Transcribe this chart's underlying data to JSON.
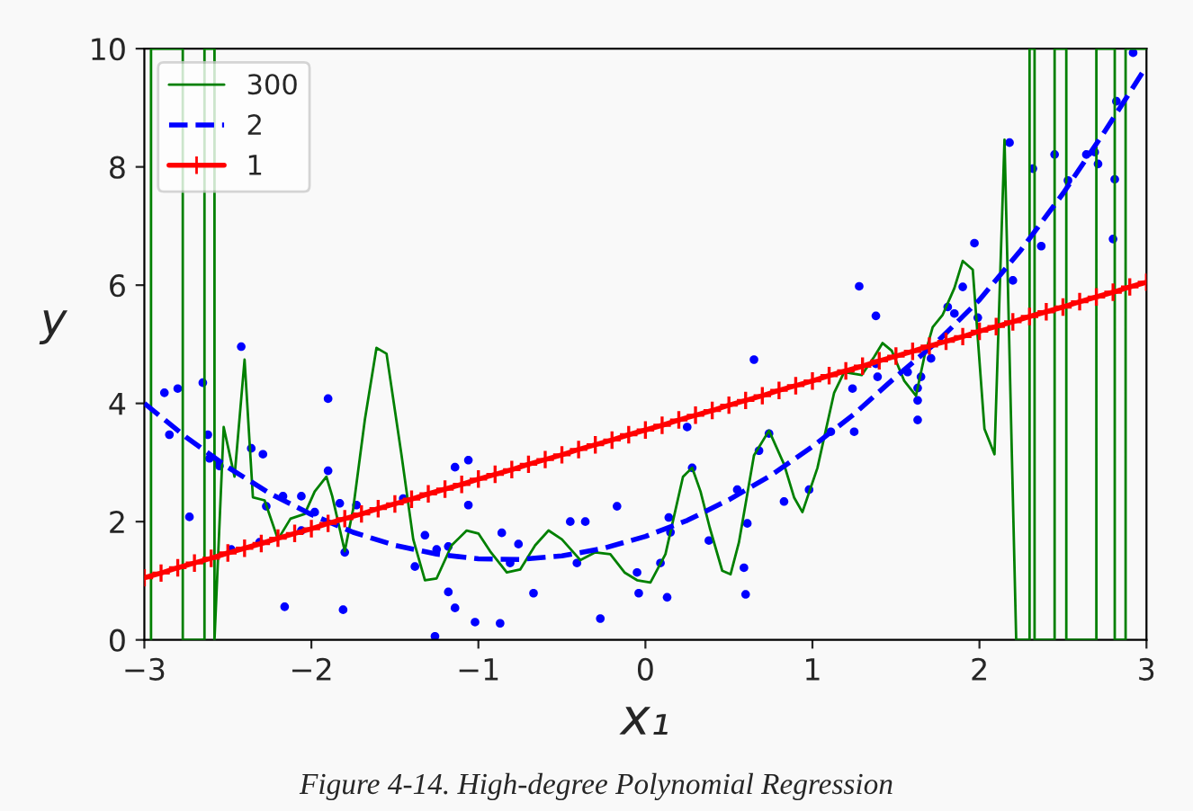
{
  "chart_data": {
    "type": "line",
    "xlabel": "x₁",
    "ylabel": "y",
    "annotations": [
      "Figure 4-14. High-degree Polynomial Regression"
    ],
    "xlim": [
      -3,
      3
    ],
    "ylim": [
      0,
      10
    ],
    "xticks": [
      {
        "value": -3,
        "label": "−3"
      },
      {
        "value": -2,
        "label": "−2"
      },
      {
        "value": -1,
        "label": "−1"
      },
      0,
      1,
      2,
      3
    ],
    "yticks": [
      0,
      2,
      4,
      6,
      8,
      10
    ],
    "grid": false,
    "legend": "top left",
    "series": [
      {
        "type": "scatter",
        "color": "#0000ff",
        "marker": "circle",
        "x": [
          -2.88,
          -2.85,
          -2.8,
          -2.73,
          -2.65,
          -2.62,
          -2.61,
          -2.56,
          -2.55,
          -2.42,
          -2.48,
          -2.36,
          -2.31,
          -2.29,
          -2.27,
          -2.16,
          -2.17,
          -2.06,
          -2.06,
          -1.98,
          -1.9,
          -1.9,
          -1.83,
          -1.81,
          -1.8,
          -1.73,
          -1.45,
          -1.38,
          -1.32,
          -1.26,
          -1.25,
          -1.18,
          -1.18,
          -1.14,
          -1.14,
          -1.06,
          -1.06,
          -1.02,
          -0.87,
          -0.86,
          -0.81,
          -0.76,
          -0.67,
          -0.45,
          -0.41,
          -0.36,
          -0.27,
          -0.17,
          -0.05,
          -0.04,
          0.09,
          0.13,
          0.14,
          0.15,
          0.25,
          0.28,
          0.38,
          0.55,
          0.59,
          0.6,
          0.61,
          0.65,
          0.68,
          0.74,
          0.83,
          0.98,
          1.11,
          1.24,
          1.25,
          1.28,
          1.38,
          1.38,
          1.39,
          1.57,
          1.63,
          1.63,
          1.63,
          1.65,
          1.71,
          1.81,
          1.85,
          1.9,
          1.97,
          1.99,
          2.18,
          2.2,
          2.32,
          2.37,
          2.45,
          2.53,
          2.64,
          2.69,
          2.71,
          2.8,
          2.81,
          2.82,
          2.92
        ],
        "values": [
          4.18,
          3.47,
          4.25,
          2.08,
          4.35,
          3.47,
          3.07,
          2.99,
          2.94,
          4.96,
          1.53,
          3.24,
          1.65,
          3.14,
          2.26,
          0.56,
          2.43,
          2.43,
          1.85,
          2.16,
          4.08,
          2.86,
          2.31,
          0.51,
          1.48,
          2.28,
          2.39,
          1.24,
          1.77,
          0.06,
          1.53,
          0.81,
          1.58,
          0.54,
          2.92,
          3.04,
          2.28,
          0.3,
          0.28,
          1.81,
          1.3,
          1.62,
          0.79,
          2.0,
          1.3,
          2.0,
          0.36,
          2.26,
          1.14,
          0.79,
          1.3,
          0.72,
          2.07,
          1.82,
          3.6,
          2.91,
          1.68,
          2.54,
          1.22,
          0.77,
          1.97,
          4.74,
          3.2,
          3.49,
          2.34,
          2.54,
          3.52,
          4.25,
          3.52,
          5.98,
          5.48,
          4.67,
          4.45,
          4.53,
          4.26,
          4.05,
          3.72,
          4.45,
          4.76,
          5.63,
          5.52,
          5.97,
          6.71,
          5.45,
          8.41,
          6.08,
          7.97,
          6.66,
          8.21,
          7.77,
          8.21,
          8.25,
          8.05,
          6.78,
          7.79,
          9.11,
          9.93
        ]
      },
      {
        "name": "300",
        "color": "#008000",
        "line_style": "solid",
        "x": [
          -2.96,
          -2.96,
          -2.77,
          -2.77,
          -2.64,
          -2.64,
          -2.58,
          -2.58,
          -2.525,
          -2.46,
          -2.4,
          -2.35,
          -2.28,
          -2.2,
          -2.125,
          -2.04,
          -1.98,
          -1.91,
          -1.875,
          -1.8,
          -1.75,
          -1.68,
          -1.61,
          -1.55,
          -1.46,
          -1.39,
          -1.32,
          -1.25,
          -1.16,
          -1.07,
          -1.0,
          -0.93,
          -0.83,
          -0.75,
          -0.66,
          -0.58,
          -0.5,
          -0.39,
          -0.3,
          -0.21,
          -0.125,
          -0.05,
          0.03,
          0.12,
          0.225,
          0.28,
          0.33,
          0.385,
          0.46,
          0.51,
          0.56,
          0.65,
          0.74,
          0.83,
          0.89,
          0.94,
          1.03,
          1.13,
          1.19,
          1.295,
          1.37,
          1.42,
          1.475,
          1.55,
          1.62,
          1.67,
          1.72,
          1.78,
          1.85,
          1.9,
          1.96,
          2.03,
          2.09,
          2.15,
          2.22,
          2.3,
          2.3,
          2.33,
          2.33,
          2.45,
          2.45,
          2.52,
          2.52,
          2.7,
          2.7,
          2.81,
          2.81,
          2.875,
          2.875,
          3.0
        ],
        "values": [
          0,
          10,
          10,
          0,
          0,
          10,
          10,
          0,
          3.6,
          2.76,
          4.74,
          2.41,
          2.36,
          1.7,
          2.05,
          2.13,
          2.51,
          2.76,
          2.43,
          1.5,
          2.21,
          3.72,
          4.94,
          4.84,
          3.12,
          1.7,
          1.01,
          1.04,
          1.6,
          1.85,
          1.8,
          1.5,
          1.14,
          1.19,
          1.6,
          1.85,
          1.7,
          1.35,
          1.48,
          1.45,
          1.14,
          1.01,
          0.97,
          1.45,
          2.76,
          2.91,
          2.51,
          1.9,
          1.17,
          1.11,
          1.65,
          3.12,
          3.54,
          2.97,
          2.41,
          2.16,
          2.91,
          4.18,
          4.53,
          4.48,
          4.79,
          5.02,
          4.89,
          4.38,
          4.13,
          4.79,
          5.29,
          5.5,
          5.95,
          6.41,
          6.26,
          3.57,
          3.14,
          8.46,
          0,
          0,
          10,
          10,
          0,
          0,
          10,
          10,
          0,
          0,
          10,
          10,
          0,
          0,
          10,
          10
        ]
      },
      {
        "name": "2",
        "color": "#0000ff",
        "line_style": "dashed",
        "x": [
          -3,
          -2.75,
          -2.5,
          -2.25,
          -2,
          -1.75,
          -1.5,
          -1.25,
          -1,
          -0.75,
          -0.5,
          -0.25,
          0,
          0.25,
          0.5,
          0.75,
          1,
          1.25,
          1.5,
          1.75,
          2,
          2.25,
          2.5,
          2.75,
          3
        ],
        "values": [
          4.0,
          3.43,
          2.92,
          2.48,
          2.12,
          1.82,
          1.6,
          1.45,
          1.37,
          1.36,
          1.42,
          1.55,
          1.75,
          2.02,
          2.37,
          2.78,
          3.27,
          3.82,
          4.45,
          5.05,
          5.75,
          6.6,
          7.55,
          8.6,
          9.7
        ]
      },
      {
        "name": "1",
        "color": "#ff0000",
        "line_style": "solid",
        "marker": "cross",
        "x": [
          -3,
          -2.9,
          -2.8,
          -2.7,
          -2.6,
          -2.5,
          -2.4,
          -2.3,
          -2.2,
          -2.1,
          -2,
          -1.9,
          -1.8,
          -1.7,
          -1.6,
          -1.5,
          -1.4,
          -1.3,
          -1.2,
          -1.1,
          -1,
          -0.9,
          -0.8,
          -0.7,
          -0.6,
          -0.5,
          -0.4,
          -0.3,
          -0.2,
          -0.1,
          0,
          0.1,
          0.2,
          0.3,
          0.4,
          0.5,
          0.6,
          0.7,
          0.8,
          0.9,
          1,
          1.1,
          1.2,
          1.3,
          1.4,
          1.5,
          1.6,
          1.7,
          1.8,
          1.9,
          2,
          2.1,
          2.2,
          2.3,
          2.4,
          2.5,
          2.6,
          2.7,
          2.8,
          2.9,
          3
        ],
        "values": [
          1.05,
          1.13,
          1.22,
          1.3,
          1.38,
          1.47,
          1.55,
          1.63,
          1.72,
          1.8,
          1.88,
          1.97,
          2.05,
          2.13,
          2.22,
          2.3,
          2.38,
          2.47,
          2.55,
          2.63,
          2.72,
          2.8,
          2.88,
          2.97,
          3.05,
          3.13,
          3.22,
          3.3,
          3.38,
          3.47,
          3.55,
          3.63,
          3.72,
          3.8,
          3.88,
          3.97,
          4.05,
          4.13,
          4.22,
          4.3,
          4.38,
          4.47,
          4.55,
          4.63,
          4.72,
          4.8,
          4.88,
          4.97,
          5.05,
          5.13,
          5.22,
          5.3,
          5.38,
          5.47,
          5.55,
          5.63,
          5.72,
          5.8,
          5.88,
          5.97,
          6.05
        ]
      }
    ]
  }
}
